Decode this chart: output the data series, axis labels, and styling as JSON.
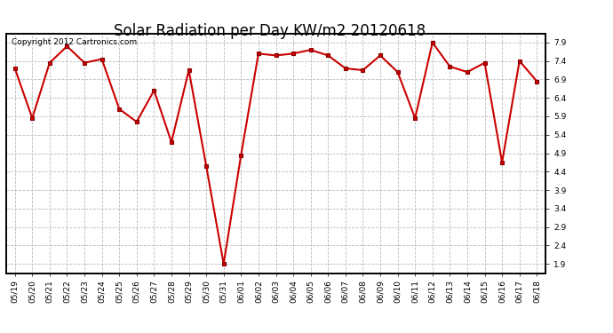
{
  "title": "Solar Radiation per Day KW/m2 20120618",
  "copyright": "Copyright 2012 Cartronics.com",
  "dates": [
    "05/19",
    "05/20",
    "05/21",
    "05/22",
    "05/23",
    "05/24",
    "05/25",
    "05/26",
    "05/27",
    "05/28",
    "05/29",
    "05/30",
    "05/31",
    "06/01",
    "06/02",
    "06/03",
    "06/04",
    "06/05",
    "06/06",
    "06/07",
    "06/08",
    "06/09",
    "06/10",
    "06/11",
    "06/12",
    "06/13",
    "06/14",
    "06/15",
    "06/16",
    "06/17",
    "06/18"
  ],
  "values": [
    7.2,
    5.85,
    7.35,
    7.8,
    7.35,
    7.45,
    6.1,
    5.75,
    6.6,
    5.2,
    7.15,
    4.55,
    1.9,
    4.85,
    7.6,
    7.55,
    7.6,
    7.7,
    7.55,
    7.2,
    7.15,
    7.55,
    7.1,
    5.85,
    7.9,
    7.25,
    7.1,
    7.35,
    4.65,
    7.4,
    6.85
  ],
  "ylim": [
    1.65,
    8.15
  ],
  "yticks": [
    1.9,
    2.4,
    2.9,
    3.4,
    3.9,
    4.4,
    4.9,
    5.4,
    5.9,
    6.4,
    6.9,
    7.4,
    7.9
  ],
  "line_color": "#cc0000",
  "marker_color": "#cc0000",
  "bg_color": "#ffffff",
  "plot_bg_color": "#ffffff",
  "grid_color": "#bbbbbb",
  "title_fontsize": 12,
  "tick_fontsize": 6.5,
  "copyright_fontsize": 6.5
}
